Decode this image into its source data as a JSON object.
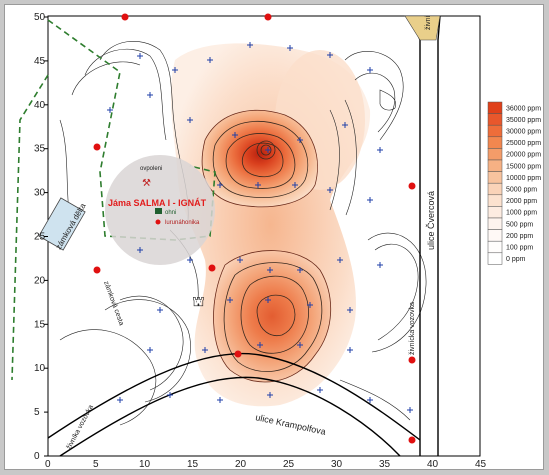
{
  "map": {
    "pit_name": "Jáma SALMA I - IGNÁT",
    "legend_small": [
      "ohni",
      "lurunáhonika"
    ],
    "label_zamkova_delta": "zámková dělta",
    "label_zamkova_cesta": "zámková cesta",
    "label_zivnostka": "živníka vozovka",
    "label_krampolfova": "ulice Krampolfova",
    "label_cvercova": "ulice Čvercová",
    "label_zivnostka2": "živnícka vozovka",
    "label_top_right": "živní",
    "label_corridor": "ovpoleni"
  },
  "axes": {
    "y_ticks": [
      "50",
      "45",
      "40",
      "35",
      "30",
      "25",
      "20",
      "15",
      "10",
      "5",
      "0"
    ],
    "x_ticks": [
      "0",
      "5",
      "10",
      "15",
      "20",
      "25",
      "30",
      "35",
      "40",
      "45"
    ]
  },
  "legend": {
    "items": [
      {
        "label": "36000 ppm",
        "color": "#e0401a"
      },
      {
        "label": "35000 ppm",
        "color": "#e8572c"
      },
      {
        "label": "30000 ppm",
        "color": "#ee6d3a"
      },
      {
        "label": "25000 ppm",
        "color": "#f2874f"
      },
      {
        "label": "20000 ppm",
        "color": "#f49c69"
      },
      {
        "label": "15000 ppm",
        "color": "#f6b184"
      },
      {
        "label": "10000 ppm",
        "color": "#f8c39e"
      },
      {
        "label": "5000 ppm",
        "color": "#fad3b8"
      },
      {
        "label": "2000 ppm",
        "color": "#fce2cf"
      },
      {
        "label": "1000 ppm",
        "color": "#fdece1"
      },
      {
        "label": "500 ppm",
        "color": "#fef4ee"
      },
      {
        "label": "200 ppm",
        "color": "#fff9f6"
      },
      {
        "label": "100 ppm",
        "color": "#fffdfc"
      },
      {
        "label": "0 ppm",
        "color": "#ffffff"
      }
    ]
  }
}
